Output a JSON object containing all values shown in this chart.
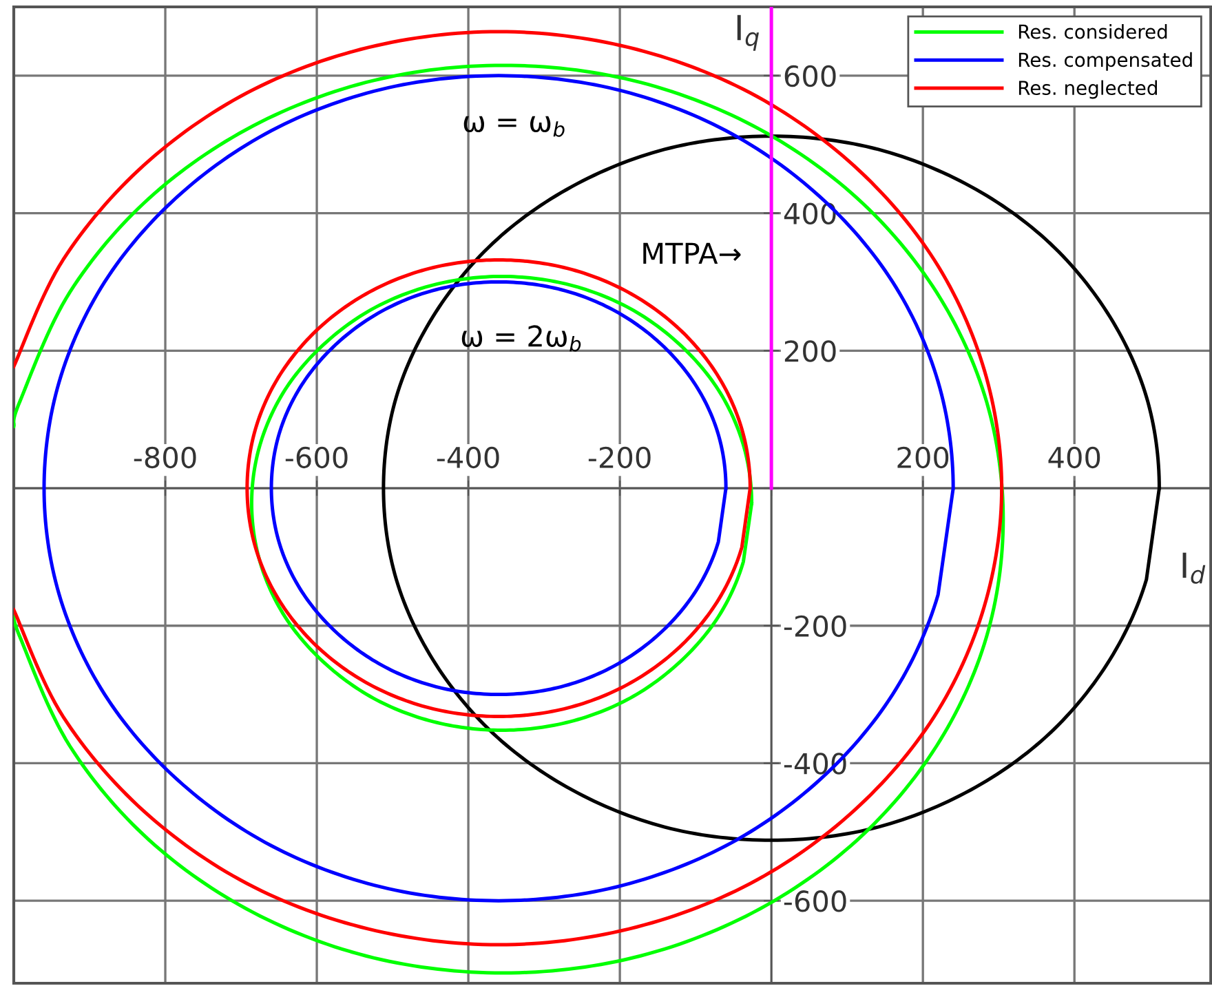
{
  "chart_data": {
    "type": "line",
    "xlabel": "I$_{d}$",
    "ylabel": "I$_{q}$",
    "xlim": [
      -1000,
      580
    ],
    "ylim": [
      -720,
      700
    ],
    "xticks": [
      -800,
      -600,
      -400,
      -200,
      {
        "value": 0,
        "label": null
      },
      200,
      400
    ],
    "yticks": [
      -600,
      -400,
      -200,
      {
        "value": 0,
        "label": null
      },
      200,
      400,
      600
    ],
    "grid": true,
    "legend": "top right",
    "annotations": [
      "ω = ω$_{b}$",
      "ω = 2ω$_{b}$",
      "MTPA→"
    ],
    "series": [
      {
        "color": "#000000",
        "x": [
          512,
          495,
          443,
          362,
          256,
          133,
          0,
          -133,
          -256,
          -362,
          -443,
          -495,
          -512,
          -495,
          -443,
          -362,
          -256,
          -133,
          0,
          133,
          256,
          362,
          443,
          495
        ],
        "values": [
          0,
          133,
          256,
          362,
          443,
          495,
          512,
          495,
          443,
          362,
          256,
          133,
          0,
          -133,
          -256,
          -362,
          -443,
          -495,
          -512,
          -495,
          -443,
          -362,
          -256,
          -133
        ]
      },
      {
        "name": "Res. considered",
        "color": "#00ff00",
        "x": [
          -1000,
          -992,
          -926,
          -821,
          -684,
          -525,
          -354,
          -183,
          -24,
          113,
          218,
          284,
          306,
          284,
          218,
          113,
          -24,
          -183,
          -354,
          -525,
          -684,
          -821,
          -926,
          -992,
          -1000
        ],
        "values": [
          -180,
          -216,
          -375,
          -512,
          -617,
          -683,
          -705,
          -683,
          -617,
          -512,
          -375,
          -216,
          -45,
          126,
          285,
          422,
          527,
          593,
          615,
          593,
          527,
          422,
          285,
          126,
          90
        ]
      },
      {
        "name": "Res. compensated",
        "color": "#0000ff",
        "x": [
          240,
          220,
          160,
          64,
          -60,
          -205,
          -360,
          -515,
          -660,
          -784,
          -880,
          -940,
          -960,
          -940,
          -880,
          -784,
          -660,
          -515,
          -360,
          -205,
          -60,
          64,
          160,
          220
        ],
        "values": [
          0,
          155,
          300,
          424,
          520,
          580,
          600,
          580,
          520,
          424,
          300,
          155,
          0,
          -155,
          -300,
          -424,
          -520,
          -580,
          -600,
          -580,
          -520,
          -424,
          -300,
          -155
        ]
      },
      {
        "name": "Res. neglected",
        "color": "#ff0000",
        "x": [
          -1000,
          -935,
          -829,
          -692,
          -532,
          -360,
          -188,
          -28,
          109,
          215,
          281,
          304,
          281,
          215,
          109,
          -28,
          -188,
          -360,
          -532,
          -692,
          -829,
          -935,
          -1000
        ],
        "values": [
          -177,
          -332,
          -469,
          -575,
          -641,
          -664,
          -641,
          -575,
          -469,
          -332,
          -172,
          0,
          172,
          332,
          469,
          575,
          641,
          664,
          641,
          575,
          469,
          332,
          177
        ]
      },
      {
        "color": "#00ff00",
        "x": [
          -26,
          -37,
          -70,
          -123,
          -191,
          -271,
          -356,
          -441,
          -521,
          -589,
          -642,
          -675,
          -686,
          -675,
          -642,
          -589,
          -521,
          -441,
          -356,
          -271,
          -191,
          -123,
          -70,
          -37
        ],
        "values": [
          -22,
          63,
          143,
          211,
          264,
          297,
          308,
          297,
          264,
          211,
          143,
          63,
          -22,
          -107,
          -187,
          -255,
          -308,
          -341,
          -352,
          -341,
          -308,
          -255,
          -187,
          -107
        ]
      },
      {
        "color": "#0000ff",
        "x": [
          -60,
          -70,
          -100,
          -148,
          -210,
          -282,
          -360,
          -438,
          -510,
          -572,
          -620,
          -650,
          -660,
          -650,
          -620,
          -572,
          -510,
          -438,
          -360,
          -282,
          -210,
          -148,
          -100,
          -70
        ],
        "values": [
          0,
          78,
          150,
          212,
          260,
          290,
          300,
          290,
          260,
          212,
          150,
          78,
          0,
          -78,
          -150,
          -212,
          -260,
          -290,
          -300,
          -290,
          -260,
          -212,
          -150,
          -78
        ]
      },
      {
        "color": "#ff0000",
        "x": [
          -28,
          -39,
          -72,
          -125,
          -194,
          -274,
          -360,
          -446,
          -526,
          -595,
          -648,
          -681,
          -692,
          -681,
          -648,
          -595,
          -526,
          -446,
          -360,
          -274,
          -194,
          -125,
          -72,
          -39
        ],
        "values": [
          0,
          86,
          166,
          235,
          288,
          321,
          332,
          321,
          288,
          235,
          166,
          86,
          0,
          -86,
          -166,
          -235,
          -288,
          -321,
          -332,
          -321,
          -288,
          -235,
          -166,
          -86
        ]
      },
      {
        "color": "#ff00ff",
        "x": [
          0,
          0
        ],
        "values": [
          0,
          700
        ]
      }
    ]
  }
}
